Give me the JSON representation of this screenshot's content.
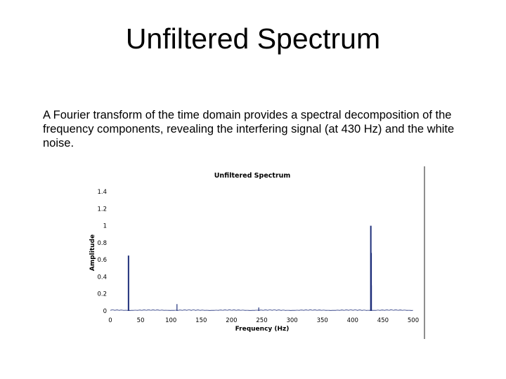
{
  "slide": {
    "title": "Unfiltered Spectrum",
    "body": "A Fourier transform of the time domain provides a spectral decomposition of the frequency components, revealing the interfering signal (at 430 Hz) and the white noise."
  },
  "chart_data": {
    "type": "line",
    "title": "Unfiltered Spectrum",
    "xlabel": "Frequency (Hz)",
    "ylabel": "Amplitude",
    "xlim": [
      0,
      500
    ],
    "ylim": [
      0,
      1.4
    ],
    "x_ticks": [
      "0",
      "50",
      "100",
      "150",
      "200",
      "250",
      "300",
      "350",
      "400",
      "450",
      "500"
    ],
    "y_ticks": [
      "0",
      "0.2",
      "0.4",
      "0.6",
      "0.8",
      "1",
      "1.2",
      "1.4"
    ],
    "grid": false,
    "color": "#1f2f7a",
    "series": [
      {
        "x": [
          30,
          110,
          245,
          430,
          430.5,
          431
        ],
        "values": [
          0.65,
          0.08,
          0.04,
          1.0,
          0.68,
          0.3
        ]
      }
    ]
  }
}
